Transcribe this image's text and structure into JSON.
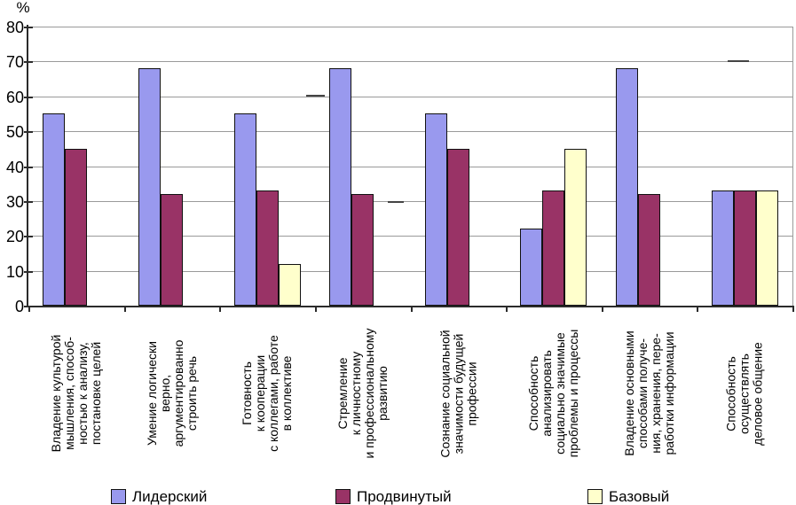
{
  "chart_data": {
    "type": "bar",
    "title": "",
    "ylabel": "%",
    "xlabel": "",
    "ylim": [
      0,
      80
    ],
    "yticks": [
      0,
      10,
      20,
      30,
      40,
      50,
      60,
      70,
      80
    ],
    "grid": true,
    "legend_position": "bottom",
    "categories": [
      "Владение культурой\nмышления, способ-\nностью к анализу,\nпостановке целей",
      "Умение логически\nверно,\nаргументированно\nстроить речь",
      "Готовность\nк кооперации\nс коллегами, работе\nв коллективе",
      "Стремление\nк личностному\nи профессиональному\nразвитию",
      "Сознание социальной\nзначимости будущей\nпрофессии",
      "Способность\nанализировать\nсоциально значимые\nпроблемы и процессы",
      "Владение основными\nспособами получе-\nния, хранения, пере-\nработки информации",
      "Способность\nосуществлять\nделовое общение"
    ],
    "series": [
      {
        "name": "Лидерский",
        "color": "#9999EE",
        "values": [
          55,
          68,
          55,
          68,
          55,
          22,
          68,
          33
        ]
      },
      {
        "name": "Продвинутый",
        "color": "#993366",
        "values": [
          45,
          32,
          33,
          32,
          45,
          33,
          32,
          33
        ]
      },
      {
        "name": "Базовый",
        "color": "#FFFFCC",
        "values": [
          0,
          0,
          12,
          0,
          0,
          45,
          0,
          33
        ]
      }
    ],
    "legend_items": [
      "Лидерский",
      "Продвинутый",
      "Базовый"
    ]
  },
  "colors": {
    "axis": "#2b2b2b",
    "gridline": "#9a9a9a",
    "bar_border": "#111111",
    "background": "#ffffff"
  }
}
